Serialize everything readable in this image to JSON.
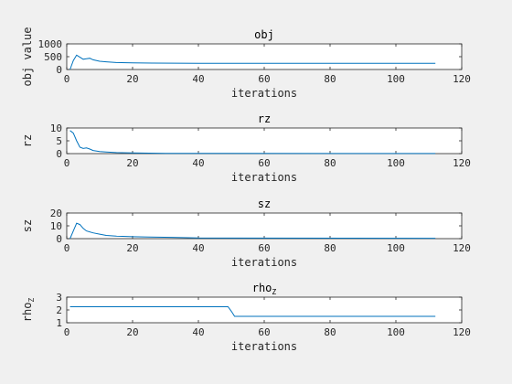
{
  "chart_data": [
    {
      "type": "line",
      "title": "obj",
      "xlabel": "iterations",
      "ylabel": "obj value",
      "xlim": [
        0,
        120
      ],
      "ylim": [
        0,
        1000
      ],
      "xticks": [
        "0",
        "20",
        "40",
        "60",
        "80",
        "100",
        "120"
      ],
      "yticks": [
        "0",
        "500",
        "1000"
      ],
      "grid": false,
      "color": "#0072bd",
      "series": [
        {
          "x": [
            1,
            2,
            3,
            4,
            5,
            6,
            7,
            8,
            10,
            12,
            15,
            20,
            26,
            40,
            60,
            80,
            100,
            112
          ],
          "y": [
            0,
            350,
            560,
            480,
            400,
            420,
            440,
            380,
            320,
            300,
            270,
            260,
            250,
            240,
            240,
            240,
            240,
            240
          ]
        }
      ]
    },
    {
      "type": "line",
      "title": "rz",
      "xlabel": "iterations",
      "ylabel": "rz",
      "xlim": [
        0,
        120
      ],
      "ylim": [
        0,
        10
      ],
      "xticks": [
        "0",
        "20",
        "40",
        "60",
        "80",
        "100",
        "120"
      ],
      "yticks": [
        "0",
        "5",
        "10"
      ],
      "grid": false,
      "color": "#0072bd",
      "series": [
        {
          "x": [
            1,
            2,
            3,
            4,
            5,
            6,
            7,
            8,
            10,
            12,
            15,
            20,
            30,
            112
          ],
          "y": [
            9,
            8,
            5,
            2.5,
            2,
            2.2,
            1.8,
            1.2,
            0.8,
            0.6,
            0.4,
            0.3,
            0.1,
            0.05
          ]
        }
      ]
    },
    {
      "type": "line",
      "title": "sz",
      "xlabel": "iterations",
      "ylabel": "sz",
      "xlim": [
        0,
        120
      ],
      "ylim": [
        0,
        20
      ],
      "xticks": [
        "0",
        "20",
        "40",
        "60",
        "80",
        "100",
        "120"
      ],
      "yticks": [
        "0",
        "10",
        "20"
      ],
      "grid": false,
      "color": "#0072bd",
      "series": [
        {
          "x": [
            1,
            2,
            3,
            4,
            5,
            6,
            8,
            10,
            12,
            15,
            20,
            25,
            32,
            40,
            112
          ],
          "y": [
            0,
            6,
            12,
            11,
            8,
            6,
            4.5,
            3.5,
            2.5,
            2,
            1.5,
            1.2,
            1,
            0.5,
            0.3
          ]
        }
      ]
    },
    {
      "type": "line",
      "title": "rho",
      "title_sub": "Z",
      "xlabel": "iterations",
      "ylabel": "rho",
      "ylabel_sub": "Z",
      "xlim": [
        0,
        120
      ],
      "ylim": [
        1,
        3
      ],
      "xticks": [
        "0",
        "20",
        "40",
        "60",
        "80",
        "100",
        "120"
      ],
      "yticks": [
        "1",
        "2",
        "3"
      ],
      "grid": false,
      "color": "#0072bd",
      "series": [
        {
          "x": [
            1,
            49,
            50,
            51,
            112
          ],
          "y": [
            2.25,
            2.25,
            1.9,
            1.5,
            1.5
          ]
        }
      ]
    }
  ]
}
